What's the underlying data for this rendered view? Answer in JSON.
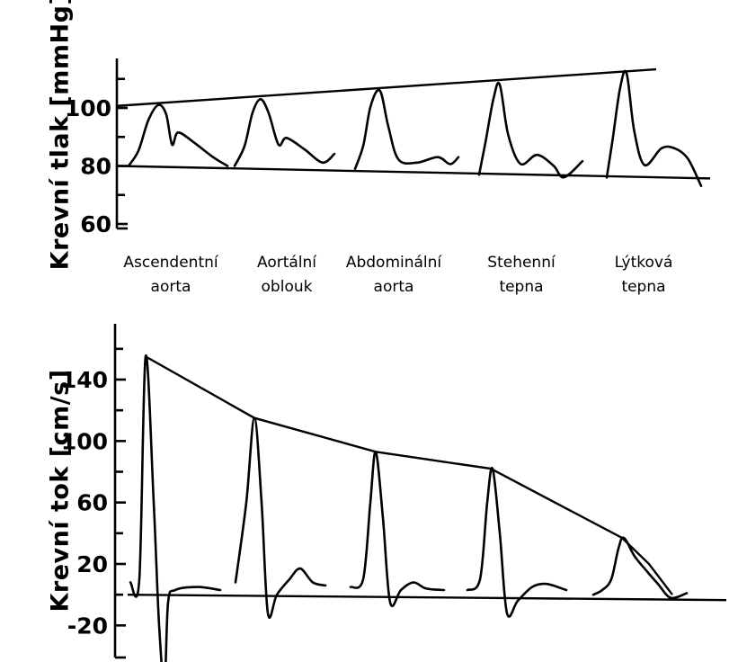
{
  "chart_data": [
    {
      "type": "line",
      "ylabel": "Krevní tlak [mmHg]",
      "yticks": [
        60,
        80,
        100
      ],
      "ylim": [
        60,
        120
      ],
      "categories": [
        "Ascendentní aorta",
        "Aortální oblouk",
        "Abdominální aorta",
        "Stehenní tepna",
        "Lýtková tepna"
      ],
      "category_lines": [
        [
          "Ascendentní",
          "aorta"
        ],
        [
          "Aortální",
          "oblouk"
        ],
        [
          "Abdominální",
          "aorta"
        ],
        [
          "Stehenní",
          "tepna"
        ],
        [
          "Lýtková",
          "tepna"
        ]
      ],
      "series": [
        {
          "values": [
            101,
            103,
            106,
            108,
            112
          ]
        }
      ],
      "diastolic_values": [
        80,
        80,
        79,
        77,
        76
      ]
    },
    {
      "type": "line",
      "ylabel": "Krevní tok [cm/s]",
      "yticks": [
        -20,
        20,
        60,
        100,
        140
      ],
      "ylim": [
        -20,
        160
      ],
      "categories": [
        "Ascendentní aorta",
        "Aortální oblouk",
        "Abdominální aorta",
        "Stehenní tepna",
        "Lýtková tepna"
      ],
      "series": [
        {
          "values": [
            155,
            115,
            93,
            82,
            37
          ]
        }
      ],
      "minimum_values": [
        -58,
        -12,
        -5,
        -12,
        -2
      ]
    }
  ]
}
